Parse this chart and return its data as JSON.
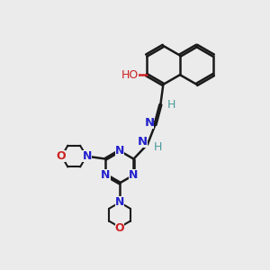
{
  "bg_color": "#ebebeb",
  "bond_color": "#1a1a1a",
  "N_color": "#2222cc",
  "O_color": "#cc2222",
  "H_color": "#4a9a9a",
  "bond_width": 1.8,
  "figsize": [
    3.0,
    3.0
  ],
  "dpi": 100,
  "xlim": [
    0,
    10
  ],
  "ylim": [
    0,
    10
  ],
  "naph_bl": 0.72,
  "naph_R1cx": 6.05,
  "naph_R1cy": 7.6,
  "triz_r": 0.6,
  "morph_r": 0.46
}
